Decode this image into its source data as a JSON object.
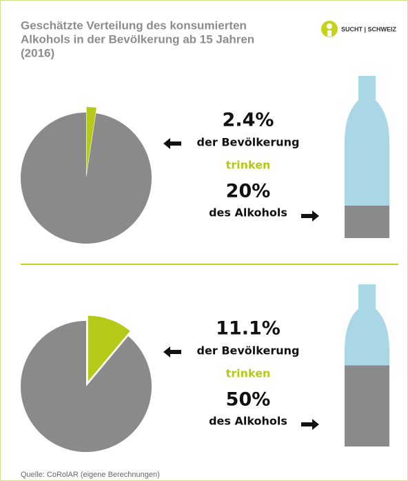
{
  "title": [
    "Geschätzte Verteilung des konsumierten",
    "Alkohols in der Bevölkerung ab 15 Jahren",
    "(2016)"
  ],
  "logo": "SUCHT | SCHWEIZ",
  "source": "Quelle: CoRolAR (eigene Berechnungen)",
  "chart_data": [
    {
      "type": "pie",
      "values": [
        2.4,
        20
      ],
      "value_labels": [
        "2.4%",
        "20%"
      ],
      "texts": [
        "der Bevölkerung",
        "trinken",
        "des Alkohols"
      ],
      "colors": [
        "#b5c918",
        "#8a8a8a",
        "#aad7e6"
      ]
    },
    {
      "type": "pie",
      "values": [
        11.1,
        50
      ],
      "value_labels": [
        "11.1%",
        "50%"
      ],
      "texts": [
        "der Bevölkerung",
        "trinken",
        "des Alkohols"
      ],
      "colors": [
        "#b5c918",
        "#8a8a8a",
        "#aad7e6"
      ]
    }
  ]
}
